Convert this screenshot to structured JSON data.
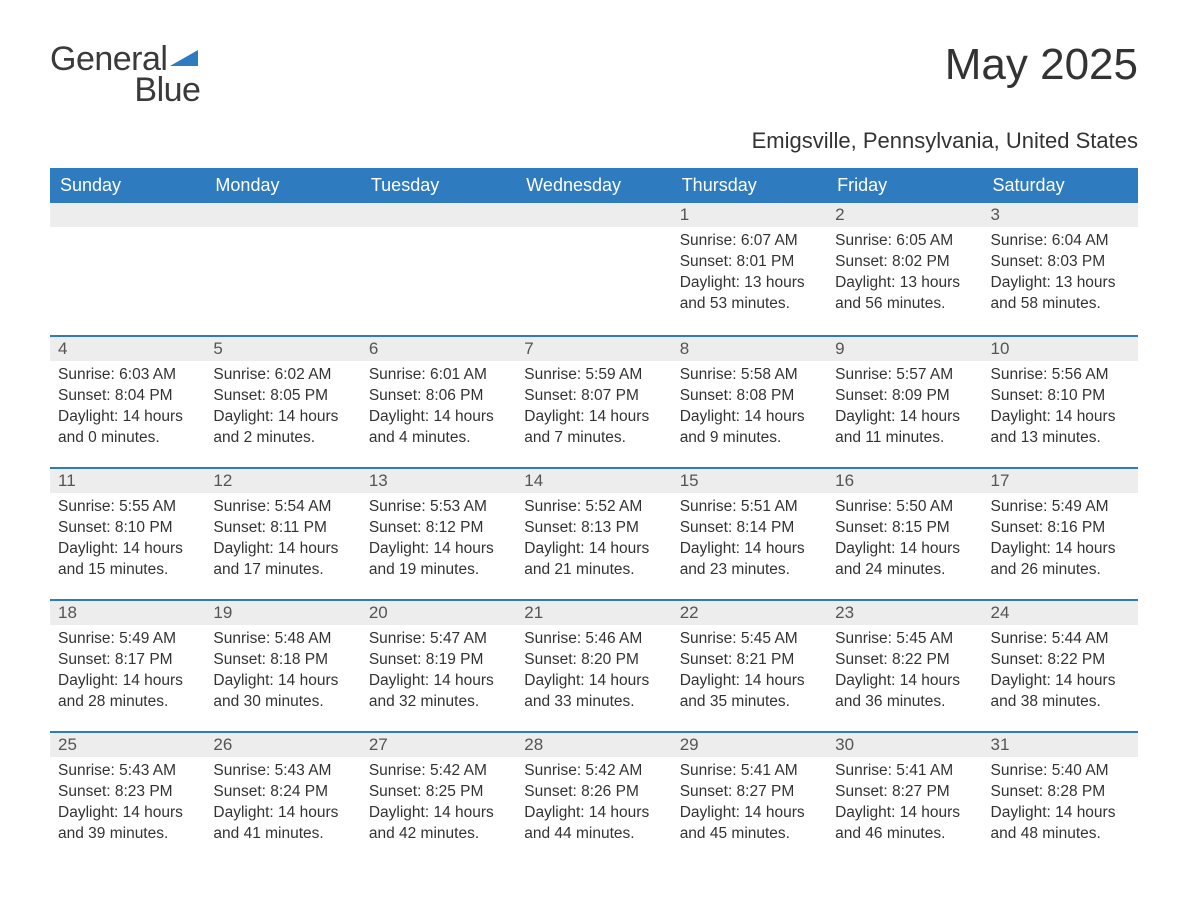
{
  "logo": {
    "text1": "General",
    "text2": "Blue",
    "icon_color": "#2f7bbf"
  },
  "title": "May 2025",
  "location": "Emigsville, Pennsylvania, United States",
  "colors": {
    "header_bg": "#2f7bbf",
    "header_text": "#ffffff",
    "daynum_bg": "#ededed",
    "border": "#2f7bbf",
    "text": "#333333"
  },
  "day_labels": [
    "Sunday",
    "Monday",
    "Tuesday",
    "Wednesday",
    "Thursday",
    "Friday",
    "Saturday"
  ],
  "weeks": [
    [
      {
        "n": "",
        "sr": "",
        "ss": "",
        "dl": ""
      },
      {
        "n": "",
        "sr": "",
        "ss": "",
        "dl": ""
      },
      {
        "n": "",
        "sr": "",
        "ss": "",
        "dl": ""
      },
      {
        "n": "",
        "sr": "",
        "ss": "",
        "dl": ""
      },
      {
        "n": "1",
        "sr": "Sunrise: 6:07 AM",
        "ss": "Sunset: 8:01 PM",
        "dl": "Daylight: 13 hours and 53 minutes."
      },
      {
        "n": "2",
        "sr": "Sunrise: 6:05 AM",
        "ss": "Sunset: 8:02 PM",
        "dl": "Daylight: 13 hours and 56 minutes."
      },
      {
        "n": "3",
        "sr": "Sunrise: 6:04 AM",
        "ss": "Sunset: 8:03 PM",
        "dl": "Daylight: 13 hours and 58 minutes."
      }
    ],
    [
      {
        "n": "4",
        "sr": "Sunrise: 6:03 AM",
        "ss": "Sunset: 8:04 PM",
        "dl": "Daylight: 14 hours and 0 minutes."
      },
      {
        "n": "5",
        "sr": "Sunrise: 6:02 AM",
        "ss": "Sunset: 8:05 PM",
        "dl": "Daylight: 14 hours and 2 minutes."
      },
      {
        "n": "6",
        "sr": "Sunrise: 6:01 AM",
        "ss": "Sunset: 8:06 PM",
        "dl": "Daylight: 14 hours and 4 minutes."
      },
      {
        "n": "7",
        "sr": "Sunrise: 5:59 AM",
        "ss": "Sunset: 8:07 PM",
        "dl": "Daylight: 14 hours and 7 minutes."
      },
      {
        "n": "8",
        "sr": "Sunrise: 5:58 AM",
        "ss": "Sunset: 8:08 PM",
        "dl": "Daylight: 14 hours and 9 minutes."
      },
      {
        "n": "9",
        "sr": "Sunrise: 5:57 AM",
        "ss": "Sunset: 8:09 PM",
        "dl": "Daylight: 14 hours and 11 minutes."
      },
      {
        "n": "10",
        "sr": "Sunrise: 5:56 AM",
        "ss": "Sunset: 8:10 PM",
        "dl": "Daylight: 14 hours and 13 minutes."
      }
    ],
    [
      {
        "n": "11",
        "sr": "Sunrise: 5:55 AM",
        "ss": "Sunset: 8:10 PM",
        "dl": "Daylight: 14 hours and 15 minutes."
      },
      {
        "n": "12",
        "sr": "Sunrise: 5:54 AM",
        "ss": "Sunset: 8:11 PM",
        "dl": "Daylight: 14 hours and 17 minutes."
      },
      {
        "n": "13",
        "sr": "Sunrise: 5:53 AM",
        "ss": "Sunset: 8:12 PM",
        "dl": "Daylight: 14 hours and 19 minutes."
      },
      {
        "n": "14",
        "sr": "Sunrise: 5:52 AM",
        "ss": "Sunset: 8:13 PM",
        "dl": "Daylight: 14 hours and 21 minutes."
      },
      {
        "n": "15",
        "sr": "Sunrise: 5:51 AM",
        "ss": "Sunset: 8:14 PM",
        "dl": "Daylight: 14 hours and 23 minutes."
      },
      {
        "n": "16",
        "sr": "Sunrise: 5:50 AM",
        "ss": "Sunset: 8:15 PM",
        "dl": "Daylight: 14 hours and 24 minutes."
      },
      {
        "n": "17",
        "sr": "Sunrise: 5:49 AM",
        "ss": "Sunset: 8:16 PM",
        "dl": "Daylight: 14 hours and 26 minutes."
      }
    ],
    [
      {
        "n": "18",
        "sr": "Sunrise: 5:49 AM",
        "ss": "Sunset: 8:17 PM",
        "dl": "Daylight: 14 hours and 28 minutes."
      },
      {
        "n": "19",
        "sr": "Sunrise: 5:48 AM",
        "ss": "Sunset: 8:18 PM",
        "dl": "Daylight: 14 hours and 30 minutes."
      },
      {
        "n": "20",
        "sr": "Sunrise: 5:47 AM",
        "ss": "Sunset: 8:19 PM",
        "dl": "Daylight: 14 hours and 32 minutes."
      },
      {
        "n": "21",
        "sr": "Sunrise: 5:46 AM",
        "ss": "Sunset: 8:20 PM",
        "dl": "Daylight: 14 hours and 33 minutes."
      },
      {
        "n": "22",
        "sr": "Sunrise: 5:45 AM",
        "ss": "Sunset: 8:21 PM",
        "dl": "Daylight: 14 hours and 35 minutes."
      },
      {
        "n": "23",
        "sr": "Sunrise: 5:45 AM",
        "ss": "Sunset: 8:22 PM",
        "dl": "Daylight: 14 hours and 36 minutes."
      },
      {
        "n": "24",
        "sr": "Sunrise: 5:44 AM",
        "ss": "Sunset: 8:22 PM",
        "dl": "Daylight: 14 hours and 38 minutes."
      }
    ],
    [
      {
        "n": "25",
        "sr": "Sunrise: 5:43 AM",
        "ss": "Sunset: 8:23 PM",
        "dl": "Daylight: 14 hours and 39 minutes."
      },
      {
        "n": "26",
        "sr": "Sunrise: 5:43 AM",
        "ss": "Sunset: 8:24 PM",
        "dl": "Daylight: 14 hours and 41 minutes."
      },
      {
        "n": "27",
        "sr": "Sunrise: 5:42 AM",
        "ss": "Sunset: 8:25 PM",
        "dl": "Daylight: 14 hours and 42 minutes."
      },
      {
        "n": "28",
        "sr": "Sunrise: 5:42 AM",
        "ss": "Sunset: 8:26 PM",
        "dl": "Daylight: 14 hours and 44 minutes."
      },
      {
        "n": "29",
        "sr": "Sunrise: 5:41 AM",
        "ss": "Sunset: 8:27 PM",
        "dl": "Daylight: 14 hours and 45 minutes."
      },
      {
        "n": "30",
        "sr": "Sunrise: 5:41 AM",
        "ss": "Sunset: 8:27 PM",
        "dl": "Daylight: 14 hours and 46 minutes."
      },
      {
        "n": "31",
        "sr": "Sunrise: 5:40 AM",
        "ss": "Sunset: 8:28 PM",
        "dl": "Daylight: 14 hours and 48 minutes."
      }
    ]
  ]
}
